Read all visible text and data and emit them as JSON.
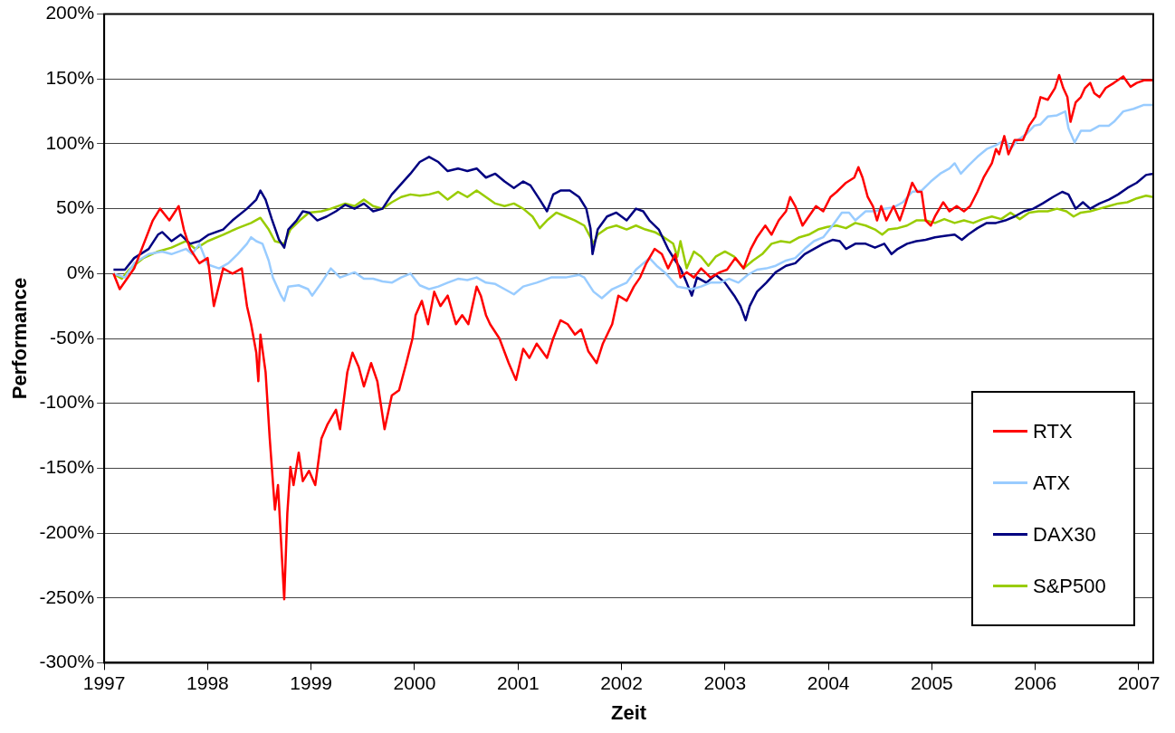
{
  "chart_data": {
    "type": "line",
    "xlabel": "Zeit",
    "ylabel": "Performance",
    "xlim": [
      1997,
      2007.14
    ],
    "xticks": [
      1997,
      1998,
      1999,
      2000,
      2001,
      2002,
      2003,
      2004,
      2005,
      2006,
      2007
    ],
    "ylim": [
      -300,
      200
    ],
    "yticks": [
      {
        "value": -300,
        "label": "-300%"
      },
      {
        "value": -250,
        "label": "-250%"
      },
      {
        "value": -200,
        "label": "-200%"
      },
      {
        "value": -150,
        "label": "-150%"
      },
      {
        "value": -100,
        "label": "-100%"
      },
      {
        "value": -50,
        "label": "-50%"
      },
      {
        "value": 0,
        "label": "0%"
      },
      {
        "value": 50,
        "label": "50%"
      },
      {
        "value": 100,
        "label": "100%"
      },
      {
        "value": 150,
        "label": "150%"
      },
      {
        "value": 200,
        "label": "200%"
      }
    ],
    "grid": "y",
    "legend": "bottom right",
    "marker": "none",
    "line_style": "solid",
    "series": [
      {
        "name": "RTX",
        "color": "#ff0000",
        "x": [
          1997.09,
          1997.15,
          1997.29,
          1997.47,
          1997.54,
          1997.63,
          1997.72,
          1997.77,
          1997.83,
          1997.92,
          1998.0,
          1998.06,
          1998.15,
          1998.24,
          1998.33,
          1998.38,
          1998.42,
          1998.47,
          1998.49,
          1998.51,
          1998.56,
          1998.6,
          1998.65,
          1998.68,
          1998.71,
          1998.74,
          1998.77,
          1998.8,
          1998.83,
          1998.88,
          1998.92,
          1998.98,
          1999.04,
          1999.1,
          1999.16,
          1999.24,
          1999.28,
          1999.35,
          1999.4,
          1999.46,
          1999.51,
          1999.58,
          1999.64,
          1999.71,
          1999.78,
          1999.85,
          1999.92,
          1999.98,
          2000.01,
          2000.07,
          2000.13,
          2000.19,
          2000.25,
          2000.32,
          2000.4,
          2000.46,
          2000.52,
          2000.6,
          2000.64,
          2000.69,
          2000.73,
          2000.82,
          2000.91,
          2000.98,
          2001.05,
          2001.11,
          2001.18,
          2001.28,
          2001.34,
          2001.41,
          2001.48,
          2001.55,
          2001.61,
          2001.68,
          2001.76,
          2001.82,
          2001.91,
          2001.97,
          2002.05,
          2002.12,
          2002.18,
          2002.24,
          2002.32,
          2002.39,
          2002.45,
          2002.52,
          2002.57,
          2002.63,
          2002.7,
          2002.77,
          2002.86,
          2002.95,
          2003.02,
          2003.1,
          2003.18,
          2003.25,
          2003.31,
          2003.39,
          2003.45,
          2003.52,
          2003.59,
          2003.63,
          2003.68,
          2003.75,
          2003.81,
          2003.88,
          2003.95,
          2004.02,
          2004.08,
          2004.17,
          2004.25,
          2004.29,
          2004.33,
          2004.38,
          2004.43,
          2004.47,
          2004.51,
          2004.56,
          2004.63,
          2004.69,
          2004.75,
          2004.81,
          2004.86,
          2004.9,
          2004.94,
          2004.99,
          2005.03,
          2005.11,
          2005.17,
          2005.24,
          2005.31,
          2005.37,
          2005.44,
          2005.5,
          2005.58,
          2005.62,
          2005.65,
          2005.7,
          2005.74,
          2005.8,
          2005.88,
          2005.94,
          2006.0,
          2006.05,
          2006.12,
          2006.19,
          2006.23,
          2006.27,
          2006.31,
          2006.34,
          2006.39,
          2006.44,
          2006.48,
          2006.53,
          2006.57,
          2006.62,
          2006.68,
          2006.76,
          2006.85,
          2006.92,
          2006.98,
          2007.05,
          2007.14
        ],
        "values": [
          0,
          -12,
          4,
          41,
          50,
          41,
          52,
          34,
          19,
          8,
          12,
          -25,
          4,
          0,
          4,
          -25,
          -39,
          -61,
          -83,
          -47,
          -76,
          -127,
          -182,
          -163,
          -207,
          -251,
          -185,
          -149,
          -163,
          -138,
          -160,
          -152,
          -163,
          -127,
          -116,
          -105,
          -120,
          -76,
          -61,
          -72,
          -87,
          -69,
          -83,
          -120,
          -94,
          -90,
          -69,
          -50,
          -32,
          -21,
          -39,
          -14,
          -25,
          -17,
          -39,
          -32,
          -39,
          -10,
          -17,
          -32,
          -39,
          -50,
          -69,
          -82,
          -58,
          -65,
          -54,
          -65,
          -50,
          -36,
          -39,
          -47,
          -43,
          -60,
          -69,
          -54,
          -39,
          -17,
          -21,
          -10,
          -3,
          8,
          19,
          15,
          4,
          15,
          -3,
          1,
          -3,
          4,
          -3,
          1,
          3,
          12,
          4,
          19,
          28,
          37,
          30,
          41,
          48,
          59,
          52,
          37,
          44,
          52,
          48,
          59,
          63,
          70,
          74,
          82,
          74,
          59,
          52,
          41,
          52,
          41,
          52,
          41,
          55,
          70,
          63,
          63,
          41,
          37,
          44,
          55,
          48,
          52,
          48,
          52,
          63,
          74,
          85,
          96,
          92,
          106,
          92,
          103,
          103,
          114,
          121,
          136,
          134,
          143,
          153,
          143,
          136,
          117,
          132,
          136,
          143,
          147,
          139,
          136,
          143,
          147,
          152,
          144,
          147,
          149,
          149
        ]
      },
      {
        "name": "ATX",
        "color": "#99ccff",
        "x": [
          1997.09,
          1997.2,
          1997.29,
          1997.43,
          1997.56,
          1997.65,
          1997.79,
          1997.85,
          1997.92,
          1998.0,
          1998.11,
          1998.2,
          1998.29,
          1998.38,
          1998.42,
          1998.47,
          1998.53,
          1998.59,
          1998.63,
          1998.71,
          1998.74,
          1998.78,
          1998.88,
          1998.97,
          1999.01,
          1999.1,
          1999.19,
          1999.28,
          1999.42,
          1999.51,
          1999.6,
          1999.69,
          1999.78,
          1999.87,
          1999.96,
          2000.05,
          2000.14,
          2000.23,
          2000.32,
          2000.42,
          2000.51,
          2000.6,
          2000.69,
          2000.78,
          2000.87,
          2000.96,
          2001.05,
          2001.18,
          2001.32,
          2001.46,
          2001.59,
          2001.64,
          2001.73,
          2001.81,
          2001.91,
          2002.05,
          2002.14,
          2002.27,
          2002.34,
          2002.43,
          2002.54,
          2002.68,
          2002.77,
          2002.86,
          2002.95,
          2003.04,
          2003.13,
          2003.22,
          2003.31,
          2003.4,
          2003.49,
          2003.59,
          2003.68,
          2003.77,
          2003.86,
          2003.95,
          2004.04,
          2004.13,
          2004.2,
          2004.26,
          2004.36,
          2004.45,
          2004.54,
          2004.63,
          2004.72,
          2004.81,
          2004.9,
          2004.99,
          2005.08,
          2005.17,
          2005.22,
          2005.28,
          2005.35,
          2005.44,
          2005.53,
          2005.62,
          2005.71,
          2005.76,
          2005.83,
          2005.92,
          2005.99,
          2006.05,
          2006.12,
          2006.21,
          2006.29,
          2006.32,
          2006.38,
          2006.44,
          2006.53,
          2006.62,
          2006.71,
          2006.76,
          2006.85,
          2006.95,
          2007.05,
          2007.14
        ],
        "values": [
          0,
          -3,
          8,
          15,
          17,
          15,
          19,
          15,
          23,
          7,
          4,
          8,
          15,
          23,
          28,
          25,
          23,
          10,
          -3,
          -17,
          -21,
          -10,
          -9,
          -12,
          -17,
          -7,
          4,
          -3,
          1,
          -4,
          -4,
          -6,
          -7,
          -3,
          0,
          -9,
          -12,
          -10,
          -7,
          -4,
          -5,
          -3,
          -7,
          -8,
          -12,
          -16,
          -10,
          -7,
          -3,
          -3,
          -1,
          -3,
          -14,
          -19,
          -12,
          -7,
          3,
          12,
          6,
          0,
          -10,
          -12,
          -10,
          -7,
          -7,
          -4,
          -7,
          -1,
          3,
          4,
          6,
          10,
          12,
          19,
          25,
          28,
          37,
          47,
          47,
          41,
          48,
          48,
          50,
          51,
          55,
          63,
          64,
          71,
          77,
          81,
          85,
          77,
          83,
          90,
          96,
          99,
          103,
          96,
          103,
          108,
          114,
          115,
          121,
          122,
          125,
          112,
          101,
          110,
          110,
          114,
          114,
          117,
          125,
          127,
          130,
          130
        ]
      },
      {
        "name": "DAX30",
        "color": "#000080",
        "x": [
          1997.09,
          1997.2,
          1997.29,
          1997.43,
          1997.52,
          1997.56,
          1997.65,
          1997.74,
          1997.83,
          1997.92,
          1998.01,
          1998.15,
          1998.24,
          1998.38,
          1998.47,
          1998.51,
          1998.56,
          1998.62,
          1998.69,
          1998.74,
          1998.78,
          1998.86,
          1998.92,
          1998.98,
          1999.06,
          1999.15,
          1999.24,
          1999.33,
          1999.42,
          1999.51,
          1999.6,
          1999.69,
          1999.78,
          1999.87,
          1999.96,
          2000.05,
          2000.14,
          2000.23,
          2000.32,
          2000.42,
          2000.51,
          2000.6,
          2000.69,
          2000.78,
          2000.87,
          2000.96,
          2001.05,
          2001.12,
          2001.21,
          2001.28,
          2001.34,
          2001.41,
          2001.5,
          2001.59,
          2001.66,
          2001.7,
          2001.72,
          2001.77,
          2001.86,
          2001.95,
          2002.05,
          2002.14,
          2002.21,
          2002.27,
          2002.36,
          2002.45,
          2002.52,
          2002.57,
          2002.63,
          2002.68,
          2002.73,
          2002.82,
          2002.91,
          2003.0,
          2003.09,
          2003.15,
          2003.2,
          2003.24,
          2003.31,
          2003.4,
          2003.49,
          2003.59,
          2003.68,
          2003.77,
          2003.86,
          2003.95,
          2004.04,
          2004.11,
          2004.17,
          2004.26,
          2004.36,
          2004.45,
          2004.54,
          2004.61,
          2004.67,
          2004.76,
          2004.85,
          2004.94,
          2005.03,
          2005.12,
          2005.22,
          2005.29,
          2005.35,
          2005.44,
          2005.53,
          2005.62,
          2005.71,
          2005.8,
          2005.89,
          2005.98,
          2006.07,
          2006.17,
          2006.26,
          2006.32,
          2006.39,
          2006.46,
          2006.53,
          2006.62,
          2006.71,
          2006.8,
          2006.89,
          2006.98,
          2007.07,
          2007.14
        ],
        "values": [
          3,
          3,
          12,
          19,
          30,
          32,
          25,
          30,
          23,
          25,
          30,
          34,
          41,
          50,
          57,
          64,
          57,
          42,
          26,
          20,
          34,
          41,
          48,
          47,
          41,
          44,
          48,
          53,
          50,
          54,
          48,
          50,
          61,
          69,
          77,
          86,
          90,
          86,
          79,
          81,
          79,
          81,
          74,
          77,
          71,
          66,
          71,
          68,
          57,
          48,
          61,
          64,
          64,
          59,
          50,
          35,
          15,
          34,
          44,
          47,
          41,
          50,
          48,
          41,
          34,
          19,
          10,
          4,
          -7,
          -17,
          -3,
          -7,
          -1,
          -7,
          -17,
          -25,
          -36,
          -25,
          -14,
          -7,
          1,
          6,
          8,
          15,
          19,
          23,
          26,
          25,
          19,
          23,
          23,
          20,
          23,
          15,
          19,
          23,
          25,
          26,
          28,
          29,
          30,
          26,
          30,
          35,
          39,
          39,
          41,
          44,
          48,
          50,
          54,
          59,
          63,
          61,
          50,
          55,
          50,
          54,
          57,
          61,
          66,
          70,
          76,
          77
        ]
      },
      {
        "name": "S&P500",
        "color": "#99cc00",
        "x": [
          1997.09,
          1997.17,
          1997.24,
          1997.38,
          1997.52,
          1997.65,
          1997.79,
          1997.88,
          1998.0,
          1998.15,
          1998.29,
          1998.42,
          1998.51,
          1998.59,
          1998.65,
          1998.74,
          1998.8,
          1998.89,
          1998.98,
          1999.1,
          1999.19,
          1999.33,
          1999.42,
          1999.51,
          1999.6,
          1999.69,
          1999.78,
          1999.87,
          1999.96,
          2000.05,
          2000.14,
          2000.23,
          2000.32,
          2000.42,
          2000.51,
          2000.6,
          2000.69,
          2000.78,
          2000.87,
          2000.96,
          2001.05,
          2001.14,
          2001.21,
          2001.28,
          2001.37,
          2001.46,
          2001.55,
          2001.64,
          2001.7,
          2001.73,
          2001.77,
          2001.86,
          2001.95,
          2002.05,
          2002.14,
          2002.23,
          2002.32,
          2002.41,
          2002.5,
          2002.54,
          2002.57,
          2002.63,
          2002.7,
          2002.77,
          2002.84,
          2002.91,
          2003.0,
          2003.09,
          2003.18,
          2003.27,
          2003.36,
          2003.45,
          2003.54,
          2003.63,
          2003.72,
          2003.81,
          2003.9,
          2003.99,
          2004.08,
          2004.17,
          2004.26,
          2004.36,
          2004.45,
          2004.52,
          2004.58,
          2004.67,
          2004.76,
          2004.85,
          2004.94,
          2005.03,
          2005.12,
          2005.22,
          2005.31,
          2005.4,
          2005.49,
          2005.58,
          2005.67,
          2005.76,
          2005.85,
          2005.94,
          2006.03,
          2006.12,
          2006.21,
          2006.3,
          2006.37,
          2006.44,
          2006.53,
          2006.62,
          2006.71,
          2006.8,
          2006.89,
          2006.98,
          2007.07,
          2007.14
        ],
        "values": [
          0,
          -4,
          3,
          12,
          17,
          20,
          25,
          19,
          25,
          30,
          35,
          39,
          43,
          34,
          25,
          23,
          34,
          41,
          47,
          48,
          50,
          54,
          52,
          57,
          52,
          50,
          55,
          59,
          61,
          60,
          61,
          63,
          57,
          63,
          59,
          64,
          59,
          54,
          52,
          54,
          50,
          44,
          35,
          41,
          47,
          44,
          41,
          37,
          28,
          23,
          30,
          35,
          37,
          34,
          37,
          34,
          32,
          28,
          23,
          13,
          25,
          4,
          17,
          13,
          6,
          13,
          17,
          13,
          4,
          10,
          15,
          23,
          25,
          24,
          28,
          30,
          34,
          36,
          37,
          35,
          39,
          37,
          34,
          30,
          34,
          35,
          37,
          41,
          41,
          39,
          42,
          39,
          41,
          39,
          42,
          44,
          42,
          47,
          42,
          47,
          48,
          48,
          50,
          48,
          44,
          47,
          48,
          50,
          52,
          54,
          55,
          58,
          60,
          59
        ]
      }
    ]
  }
}
